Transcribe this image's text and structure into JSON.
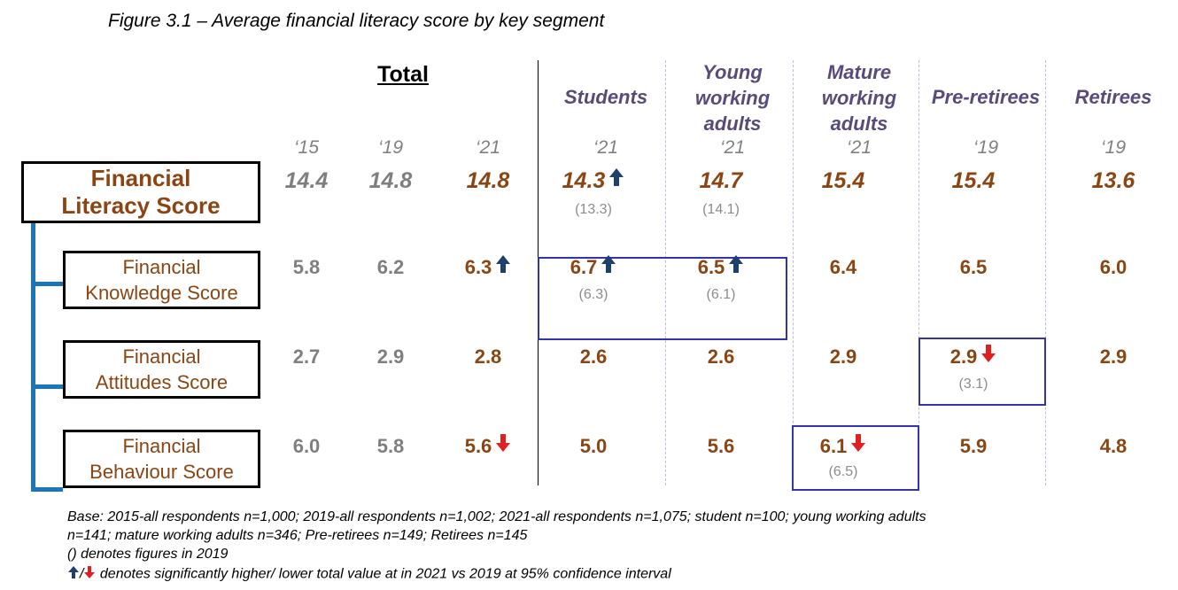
{
  "title": "Figure 3.1 – Average financial literacy score by key segment",
  "total_header": "Total",
  "row_labels": {
    "fls": [
      "Financial",
      "Literacy Score"
    ],
    "knowledge": [
      "Financial",
      "Knowledge Score"
    ],
    "attitudes": [
      "Financial",
      "Attitudes Score"
    ],
    "behaviour": [
      "Financial",
      "Behaviour Score"
    ]
  },
  "columns": [
    {
      "key": "t15",
      "segment": "",
      "year": "‘15"
    },
    {
      "key": "t19",
      "segment": "",
      "year": "‘19"
    },
    {
      "key": "t21",
      "segment": "",
      "year": "‘21"
    },
    {
      "key": "students",
      "segment": "Students",
      "year": "‘21"
    },
    {
      "key": "young",
      "segment": "Young\nworking\nadults",
      "year": "‘21"
    },
    {
      "key": "mature",
      "segment": "Mature\nworking\nadults",
      "year": "‘21"
    },
    {
      "key": "preret",
      "segment": "Pre-retirees",
      "year": "‘19"
    },
    {
      "key": "ret",
      "segment": "Retirees",
      "year": "‘19"
    }
  ],
  "chart_data": {
    "type": "table",
    "rows": [
      {
        "key": "fls",
        "values": [
          "14.4",
          "14.8",
          "14.8",
          "14.3",
          "14.7",
          "15.4",
          "15.4",
          "13.6"
        ],
        "prev": [
          "",
          "",
          "",
          "(13.3)",
          "(14.1)",
          "",
          "",
          ""
        ],
        "sig": [
          "",
          "",
          "",
          "up",
          "",
          "",
          "",
          ""
        ]
      },
      {
        "key": "knowledge",
        "values": [
          "5.8",
          "6.2",
          "6.3",
          "6.7",
          "6.5",
          "6.4",
          "6.5",
          "6.0"
        ],
        "prev": [
          "",
          "",
          "",
          "(6.3)",
          "(6.1)",
          "",
          "",
          ""
        ],
        "sig": [
          "",
          "",
          "up",
          "up",
          "up",
          "",
          "",
          ""
        ]
      },
      {
        "key": "attitudes",
        "values": [
          "2.7",
          "2.9",
          "2.8",
          "2.6",
          "2.6",
          "2.9",
          "2.9",
          "2.9"
        ],
        "prev": [
          "",
          "",
          "",
          "",
          "",
          "",
          "(3.1)",
          ""
        ],
        "sig": [
          "",
          "",
          "",
          "",
          "",
          "",
          "down",
          ""
        ]
      },
      {
        "key": "behaviour",
        "values": [
          "6.0",
          "5.8",
          "5.6",
          "5.0",
          "5.6",
          "6.1",
          "5.9",
          "4.8"
        ],
        "prev": [
          "",
          "",
          "",
          "",
          "",
          "(6.5)",
          "",
          ""
        ],
        "sig": [
          "",
          "",
          "down",
          "",
          "",
          "down",
          "",
          ""
        ]
      }
    ]
  },
  "colors": {
    "brown": "#8b4513",
    "grey": "#7f7f7f",
    "segment": "#5a4a7a",
    "up": "#1f3f6e",
    "down": "#e02020",
    "highlight": "#3333aa",
    "bracket": "#1b75bb"
  },
  "footnotes": [
    "Base: 2015-all respondents n=1,000; 2019-all respondents n=1,002; 2021-all respondents n=1,075; student n=100; young working adults",
    "n=141; mature working adults n=346; Pre-retirees n=149; Retirees n=145",
    " () denotes figures in 2019",
    " denotes significantly higher/ lower total value at in 2021 vs 2019 at 95% confidence interval"
  ],
  "icons": {
    "up": "arrow-up-icon",
    "down": "arrow-down-icon"
  }
}
